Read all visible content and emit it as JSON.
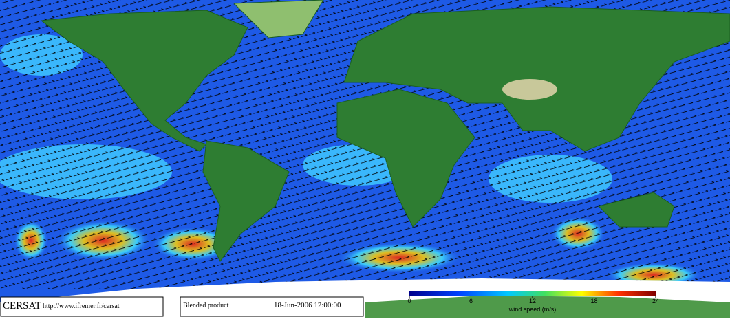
{
  "footer": {
    "brand": "CERSAT",
    "url": "http://www.ifremer.fr/cersat",
    "product": "Blended product",
    "timestamp": "18-Jun-2006 12:00:00"
  },
  "colorbar": {
    "label": "wind speed (m/s)",
    "lim": [
      0,
      24
    ],
    "ticks": [
      0,
      6,
      12,
      18,
      24
    ]
  }
}
